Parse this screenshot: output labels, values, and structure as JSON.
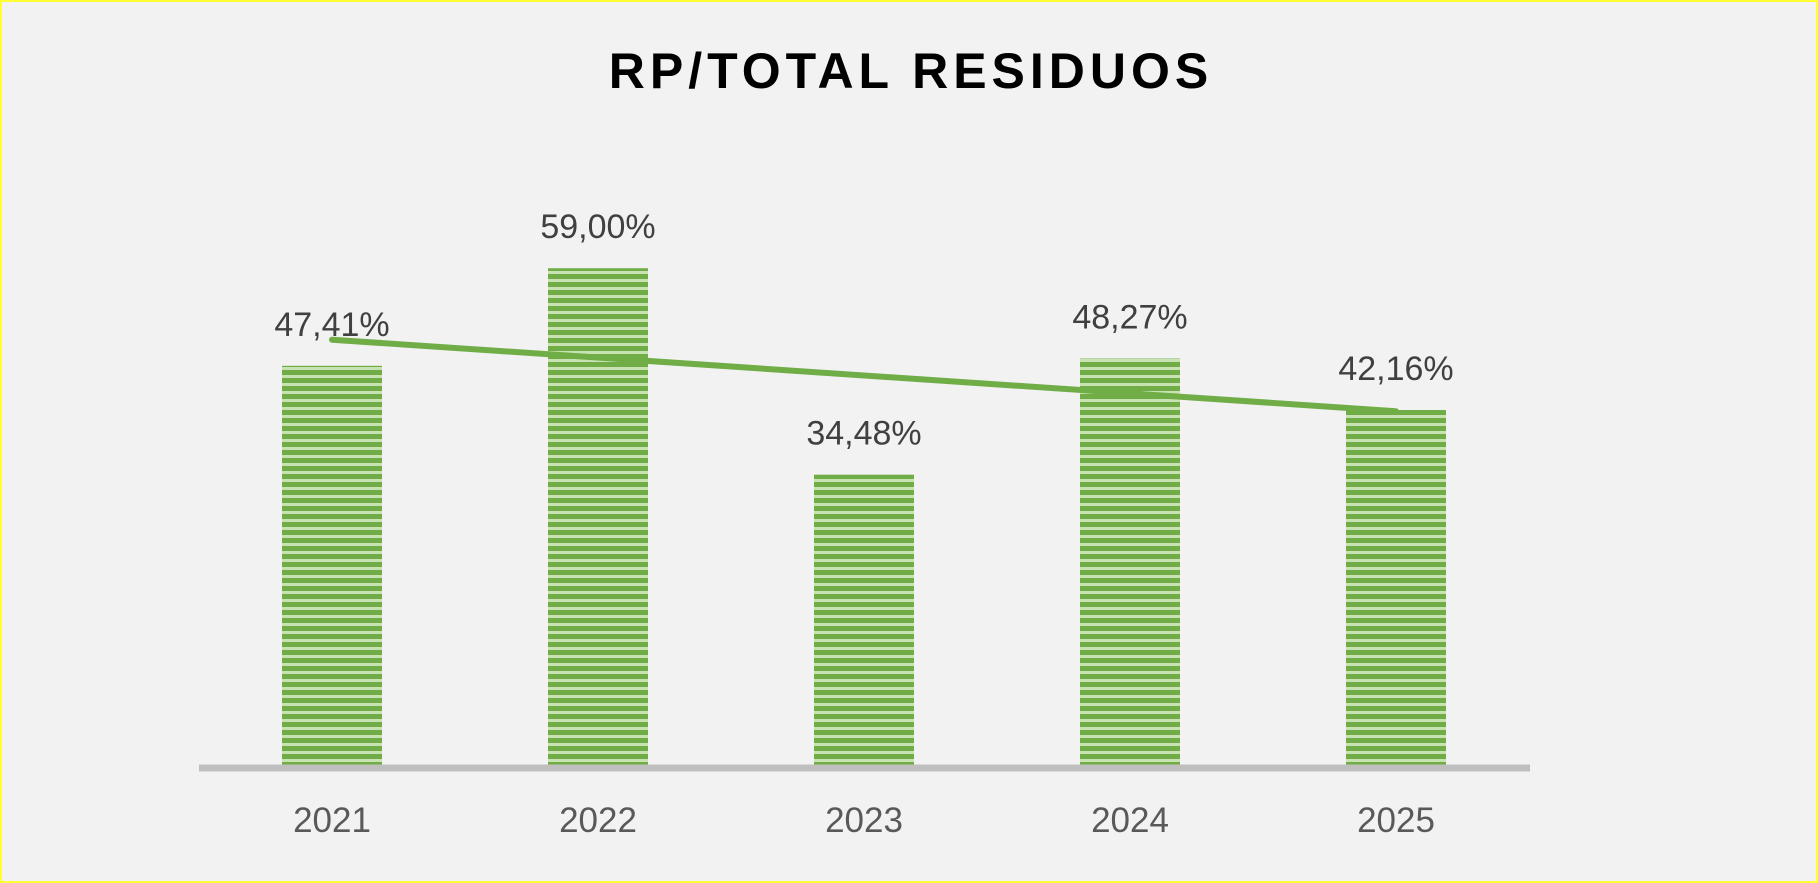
{
  "chart_data": {
    "type": "bar",
    "title": "RP/TOTAL RESIDUOS",
    "categories": [
      "2021",
      "2022",
      "2023",
      "2024",
      "2025"
    ],
    "values": [
      47.41,
      59.0,
      34.48,
      48.27,
      42.16
    ],
    "data_labels": [
      "47,41%",
      "59,00%",
      "34,48%",
      "48,27%",
      "42,16%"
    ],
    "trendline": {
      "type": "linear",
      "color": "#70ad47"
    },
    "xlabel": "",
    "ylabel": "",
    "ylim": [
      0,
      100
    ],
    "grid": false,
    "colors": {
      "bar": "#70ad47",
      "bar_light": "#c9e2b3",
      "axis": "#bfbfbf",
      "label": "#404040",
      "tick": "#595959"
    }
  }
}
